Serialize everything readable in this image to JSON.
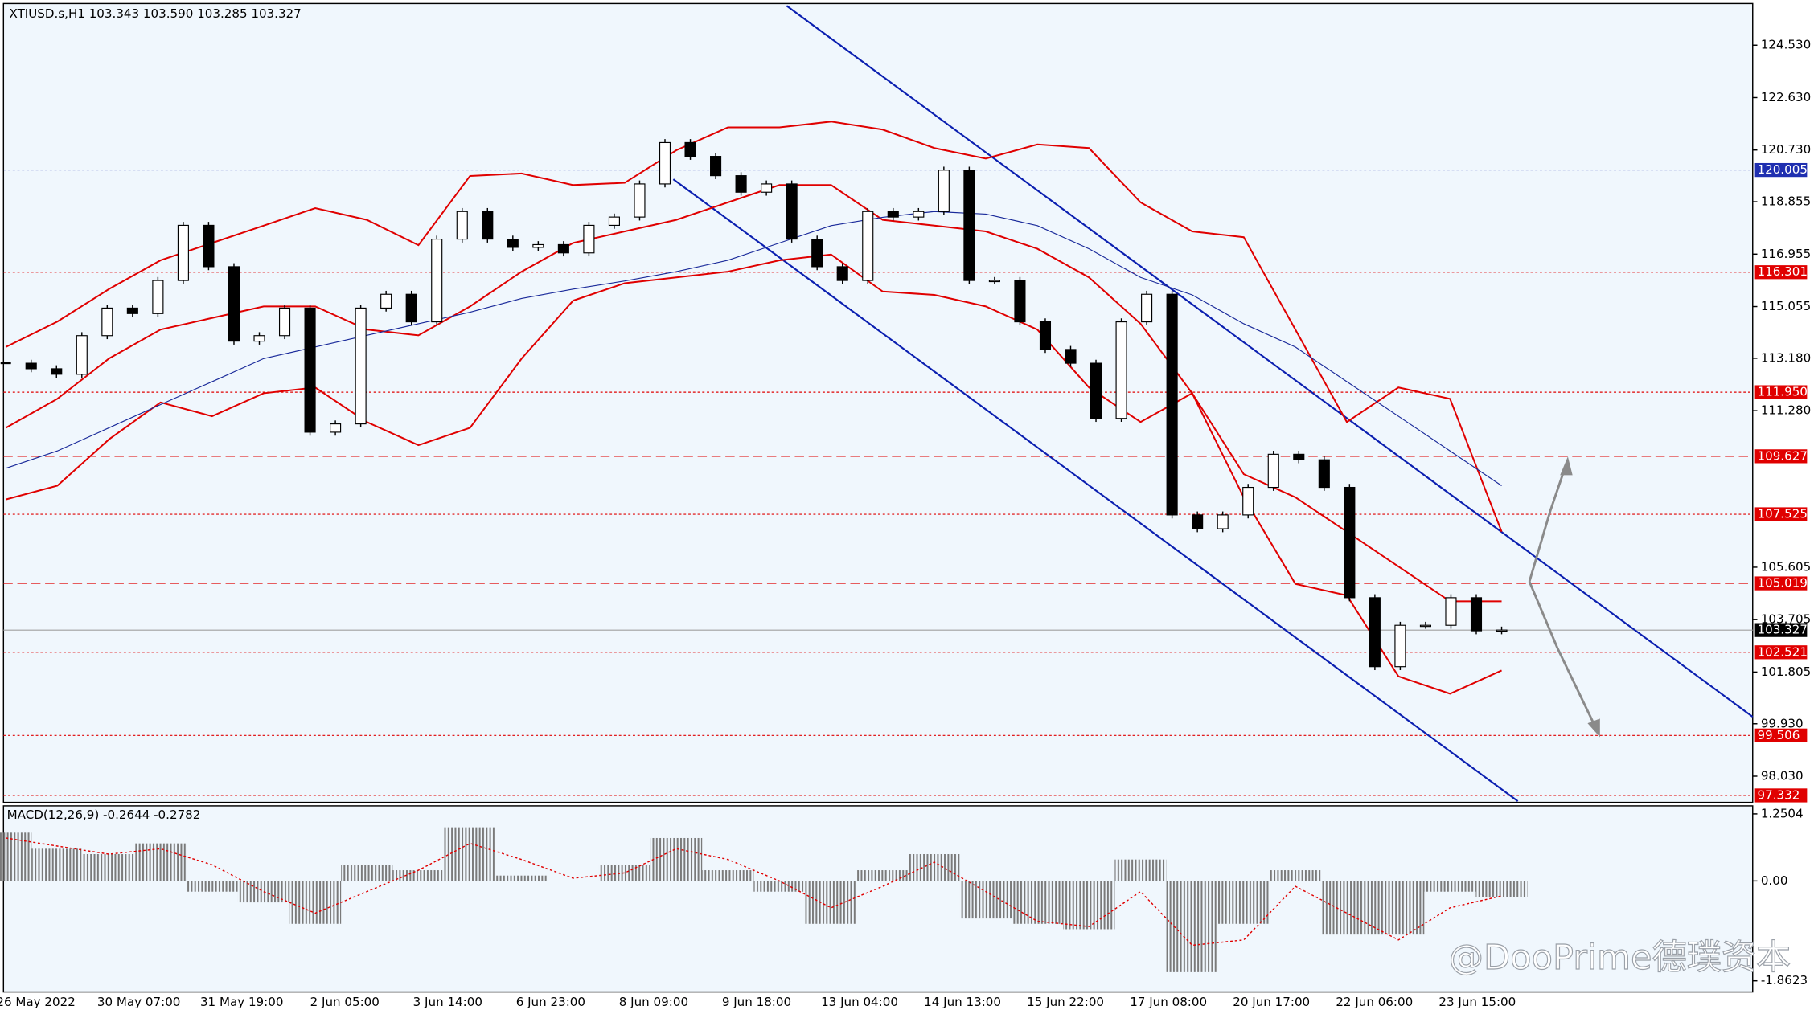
{
  "chart_data": {
    "type": "candlestick",
    "title": "XTIUSD.s,H1  103.343 103.590 103.285 103.327",
    "time_labels": [
      "26 May 2022",
      "30 May 07:00",
      "31 May 19:00",
      "2 Jun 05:00",
      "3 Jun 14:00",
      "6 Jun 23:00",
      "8 Jun 09:00",
      "9 Jun 18:00",
      "13 Jun 04:00",
      "14 Jun 13:00",
      "15 Jun 22:00",
      "17 Jun 08:00",
      "20 Jun 17:00",
      "22 Jun 06:00",
      "23 Jun 15:00"
    ],
    "ylim": [
      97.08,
      126.04
    ],
    "yticks": [
      {
        "value": 124.53,
        "label": "124.530"
      },
      {
        "value": 122.63,
        "label": "122.630"
      },
      {
        "value": 120.73,
        "label": "120.730"
      },
      {
        "value": 118.855,
        "label": "118.855"
      },
      {
        "value": 116.955,
        "label": "116.955"
      },
      {
        "value": 115.055,
        "label": "115.055"
      },
      {
        "value": 113.18,
        "label": "113.180"
      },
      {
        "value": 111.28,
        "label": "111.280"
      },
      {
        "value": 105.605,
        "label": "105.605"
      },
      {
        "value": 103.705,
        "label": "103.705"
      },
      {
        "value": 101.805,
        "label": "101.805"
      },
      {
        "value": 99.93,
        "label": "99.930"
      },
      {
        "value": 98.03,
        "label": "98.030"
      }
    ],
    "close": {
      "name": "XTIUSD.s",
      "up_color": "#ffffff",
      "down_color": "#000000",
      "values": [
        113.0,
        112.8,
        112.6,
        114.0,
        115.0,
        114.8,
        116.0,
        118.0,
        116.5,
        113.8,
        114.0,
        115.0,
        110.5,
        110.8,
        115.0,
        115.5,
        114.5,
        117.5,
        118.5,
        117.5,
        117.2,
        117.3,
        117.0,
        118.0,
        118.3,
        119.5,
        121.0,
        120.5,
        119.8,
        119.2,
        119.5,
        117.5,
        116.5,
        116.0,
        118.5,
        118.3,
        118.5,
        120.0,
        116.0,
        116.0,
        114.5,
        113.5,
        113.0,
        111.0,
        114.5,
        115.5,
        107.5,
        107.0,
        107.5,
        108.5,
        109.7,
        109.5,
        108.5,
        104.5,
        102.0,
        103.5,
        103.5,
        104.5,
        103.3,
        103.327
      ]
    },
    "series": [
      {
        "color": "#e00000",
        "values": [
          113.59,
          114.51,
          115.69,
          116.73,
          117.36,
          117.99,
          118.62,
          118.2,
          117.28,
          119.79,
          119.88,
          119.46,
          119.54,
          120.72,
          121.55,
          121.55,
          121.76,
          121.47,
          120.8,
          120.42,
          120.93,
          120.8,
          118.83,
          117.78,
          117.57,
          114.22,
          110.87,
          112.12,
          111.71,
          106.89
        ]
      },
      {
        "color": "#e00000",
        "values": [
          110.66,
          111.71,
          113.17,
          114.22,
          114.64,
          115.06,
          115.06,
          114.22,
          114.01,
          115.06,
          116.32,
          117.36,
          117.78,
          118.2,
          118.83,
          119.46,
          119.46,
          118.2,
          117.99,
          117.78,
          117.15,
          116.11,
          114.43,
          111.91,
          108.98,
          108.14,
          106.89,
          105.63,
          104.37,
          104.37
        ]
      },
      {
        "color": "#e00000",
        "values": [
          108.06,
          108.56,
          110.24,
          111.58,
          111.08,
          111.91,
          112.12,
          110.87,
          110.03,
          110.66,
          113.17,
          115.27,
          115.9,
          116.11,
          116.32,
          116.73,
          116.94,
          115.6,
          115.48,
          115.06,
          114.22,
          112.12,
          110.87,
          111.91,
          108.14,
          105.0,
          104.58,
          101.65,
          101.02,
          101.86
        ]
      },
      {
        "color": "#1a2a9a",
        "values": [
          109.19,
          109.82,
          110.66,
          111.5,
          112.33,
          113.17,
          113.59,
          114.01,
          114.43,
          114.85,
          115.35,
          115.69,
          115.98,
          116.32,
          116.73,
          117.36,
          117.99,
          118.29,
          118.5,
          118.41,
          117.99,
          117.15,
          116.11,
          115.48,
          114.43,
          113.59,
          112.33,
          111.08,
          109.82,
          108.56
        ]
      }
    ],
    "levels": [
      {
        "value": 120.005,
        "color": "#1f2fb0",
        "style": "dotted"
      },
      {
        "value": 116.301,
        "color": "#e00000",
        "style": "dotted"
      },
      {
        "value": 111.95,
        "label": "111.950",
        "color": "#e00000",
        "style": "dotted"
      },
      {
        "value": 109.627,
        "color": "#e00000",
        "style": "dashed"
      },
      {
        "value": 107.525,
        "color": "#e00000",
        "style": "dotted"
      },
      {
        "value": 105.019,
        "color": "#e00000",
        "style": "dashed"
      },
      {
        "value": 103.327,
        "color": "#000000",
        "style": "solid"
      },
      {
        "value": 102.521,
        "color": "#e00000",
        "style": "dotted"
      },
      {
        "value": 99.506,
        "color": "#e00000",
        "style": "dotted"
      },
      {
        "value": 97.332,
        "color": "#e00000",
        "style": "dotted"
      }
    ],
    "macd": {
      "title": "MACD(12,26,9) -0.2644 -0.2782",
      "ylim": [
        -2.07,
        1.4
      ],
      "yticks": [
        {
          "value": 1.2504,
          "label": "1.2504"
        },
        {
          "value": 0,
          "label": "0.00"
        },
        {
          "value": -1.8623,
          "label": "-1.8623"
        }
      ],
      "histogram": {
        "color": "#808080",
        "values": [
          0.9,
          0.6,
          0.5,
          0.7,
          -0.2,
          -0.4,
          -0.8,
          0.3,
          0.2,
          1.0,
          0.1,
          0.0,
          0.3,
          0.8,
          0.2,
          -0.2,
          -0.8,
          0.2,
          0.5,
          -0.7,
          -0.8,
          -0.9,
          0.4,
          -1.7,
          -0.8,
          0.2,
          -1.0,
          -1.0,
          -0.2,
          -0.3
        ]
      },
      "signal": {
        "color": "#e00000",
        "values": [
          0.8,
          0.65,
          0.5,
          0.6,
          0.3,
          -0.2,
          -0.6,
          -0.2,
          0.2,
          0.7,
          0.4,
          0.05,
          0.15,
          0.6,
          0.4,
          0.0,
          -0.5,
          -0.1,
          0.35,
          -0.2,
          -0.75,
          -0.85,
          -0.2,
          -1.2,
          -1.1,
          -0.1,
          -0.6,
          -1.1,
          -0.5,
          -0.28
        ]
      }
    },
    "watermark": "@DooPrime德璞资本"
  }
}
